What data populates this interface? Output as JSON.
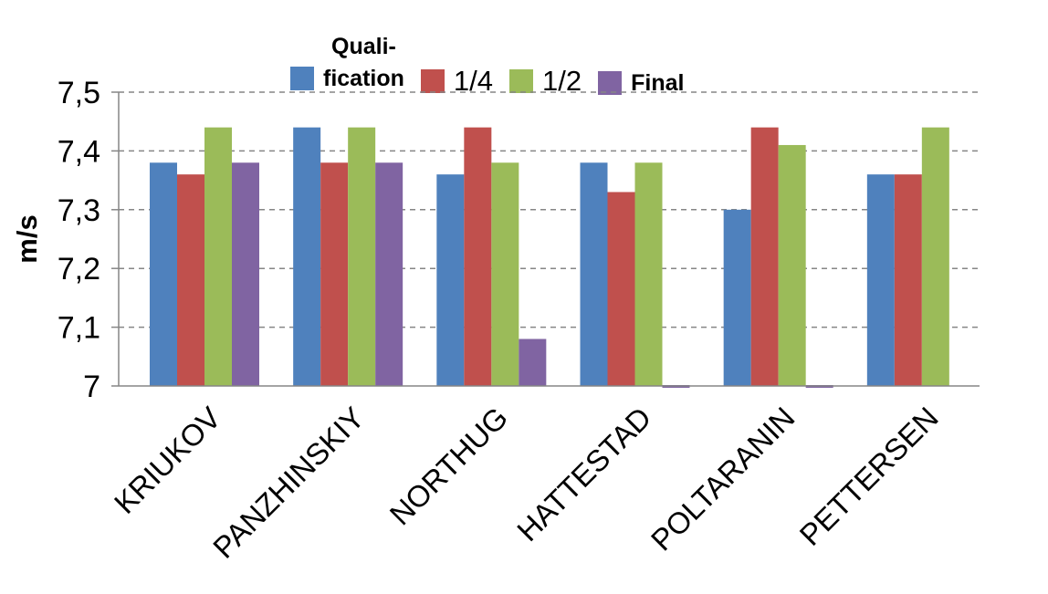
{
  "chart_data": {
    "type": "bar",
    "title": "",
    "xlabel": "",
    "ylabel": "m/s",
    "ylim": [
      7.0,
      7.5
    ],
    "yticks": [
      "7",
      "7,1",
      "7,2",
      "7,3",
      "7,4",
      "7,5"
    ],
    "ytick_values": [
      7.0,
      7.1,
      7.2,
      7.3,
      7.4,
      7.5
    ],
    "grid": "horizontal dashed",
    "legend_position": "top",
    "categories": [
      "KRIUKOV",
      "PANZHINSKIY",
      "NORTHUG",
      "HATTESTAD",
      "POLTARANIN",
      "PETTERSEN"
    ],
    "series": [
      {
        "name": "Quali-\nfication",
        "color": "#4F81BD",
        "values": [
          7.38,
          7.44,
          7.36,
          7.38,
          7.3,
          7.36
        ]
      },
      {
        "name": "1/4",
        "color": "#C0504D",
        "values": [
          7.36,
          7.38,
          7.44,
          7.33,
          7.44,
          7.36
        ]
      },
      {
        "name": "1/2",
        "color": "#9BBB59",
        "values": [
          7.44,
          7.44,
          7.38,
          7.38,
          7.41,
          7.44
        ]
      },
      {
        "name": "Final",
        "color": "#8064A2",
        "values": [
          7.38,
          7.38,
          7.08,
          7.0,
          7.0,
          null
        ]
      }
    ]
  }
}
